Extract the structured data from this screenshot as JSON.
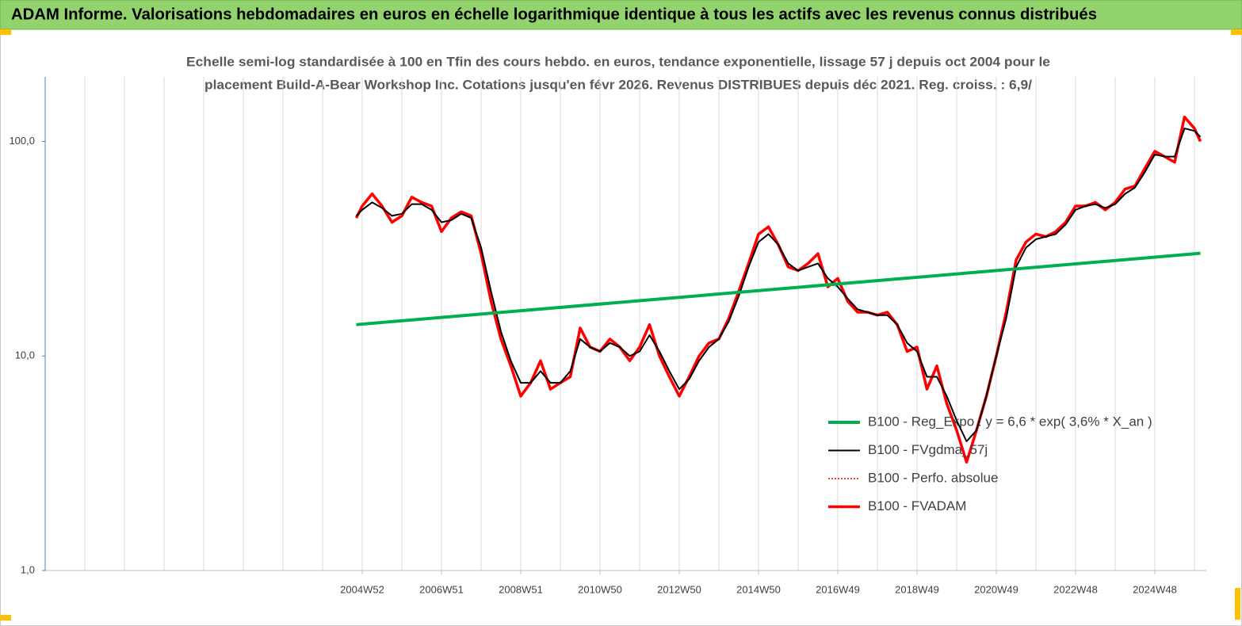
{
  "chart_data": {
    "type": "line",
    "title": "ADAM Informe. Valorisations hebdomadaires en euros en échelle logarithmique identique à tous les actifs avec les revenus connus distribués",
    "subtitle": [
      "Echelle semi-log standardisée à 100 en Tfin des cours hebdo. en euros, tendance exponentielle, lissage 57 j depuis oct 2004 pour le",
      "placement Build-A-Bear Workshop Inc.  Cotations jusqu'en févr 2026. Revenus DISTRIBUES depuis déc 2021. Reg. croiss. : 6,9/"
    ],
    "x": [
      2004.85,
      2005,
      2005.25,
      2005.5,
      2005.75,
      2006,
      2006.25,
      2006.5,
      2006.75,
      2007,
      2007.25,
      2007.5,
      2007.75,
      2008,
      2008.25,
      2008.5,
      2008.75,
      2009,
      2009.25,
      2009.5,
      2009.75,
      2010,
      2010.25,
      2010.5,
      2010.75,
      2011,
      2011.25,
      2011.5,
      2011.75,
      2012,
      2012.25,
      2012.5,
      2012.75,
      2013,
      2013.25,
      2013.5,
      2013.75,
      2014,
      2014.25,
      2014.5,
      2014.75,
      2015,
      2015.25,
      2015.5,
      2015.75,
      2016,
      2016.25,
      2016.5,
      2016.75,
      2017,
      2017.25,
      2017.5,
      2017.75,
      2018,
      2018.25,
      2018.5,
      2018.75,
      2019,
      2019.25,
      2019.5,
      2019.75,
      2020,
      2020.25,
      2020.5,
      2020.75,
      2021,
      2021.25,
      2021.5,
      2021.75,
      2022,
      2022.25,
      2022.5,
      2022.75,
      2023,
      2023.25,
      2023.5,
      2023.75,
      2024,
      2024.25,
      2024.5,
      2024.75,
      2025,
      2025.25,
      2025.5,
      2025.75,
      2026,
      2026.15
    ],
    "series": [
      {
        "name": "B100 - Reg_Expo : y = 6,6 * exp( 3,6% *  X_an )",
        "color": "#00b050",
        "linewidth": 4,
        "x": [
          2004.85,
          2026.15
        ],
        "values": [
          14.0,
          30.1
        ]
      },
      {
        "name": "B100 - FVgdma_57j",
        "color": "#000000",
        "linewidth": 2,
        "values": [
          45,
          48,
          52,
          49,
          45,
          46,
          51,
          51,
          48,
          42,
          43,
          46,
          44,
          32,
          20,
          13,
          9.5,
          7.5,
          7.5,
          8.5,
          7.5,
          7.5,
          8.5,
          12,
          11,
          10.5,
          11.5,
          11,
          10,
          10.5,
          12.5,
          10.5,
          8.5,
          7,
          7.8,
          9.5,
          11,
          12,
          14.5,
          19,
          26,
          34,
          37,
          33,
          27,
          25,
          26,
          27,
          23,
          21,
          18.5,
          16.5,
          16,
          15.5,
          15.5,
          14,
          11.5,
          10.5,
          8,
          8,
          6.5,
          5,
          4,
          4.5,
          6.5,
          10,
          15,
          26,
          32,
          35,
          36,
          37,
          41,
          48,
          50,
          51,
          49,
          51,
          57,
          61,
          72,
          87,
          85,
          85,
          115,
          112,
          105
        ]
      },
      {
        "name": "B100 - Perfo. absolue",
        "color": "#ff0000",
        "linewidth": 1.5,
        "line_style": "dotted",
        "values": [
          44,
          50,
          57,
          50,
          42,
          45,
          55,
          52,
          50,
          38,
          44,
          47,
          45,
          30,
          18,
          12,
          9,
          6.5,
          7.5,
          9.5,
          7,
          7.5,
          8,
          13.5,
          11,
          10.5,
          12,
          11,
          9.5,
          11,
          14,
          10,
          8,
          6.5,
          8,
          10,
          11.5,
          12,
          15,
          20,
          27,
          37,
          40,
          33,
          26,
          25,
          27,
          30,
          21,
          23,
          18,
          16,
          16,
          15.5,
          16,
          14,
          10.5,
          11,
          7,
          9,
          6,
          4.5,
          3.2,
          4.5,
          6.5,
          10,
          16,
          28,
          34,
          37,
          36,
          38,
          42,
          50,
          50,
          52,
          48,
          52,
          60,
          62,
          75,
          90,
          85,
          80,
          130,
          115,
          100
        ]
      },
      {
        "name": "B100 - FVADAM",
        "color": "#ff0000",
        "linewidth": 3.5,
        "values": [
          44,
          50,
          57,
          50,
          42,
          45,
          55,
          52,
          50,
          38,
          44,
          47,
          45,
          30,
          18,
          12,
          9,
          6.5,
          7.5,
          9.5,
          7,
          7.5,
          8,
          13.5,
          11,
          10.5,
          12,
          11,
          9.5,
          11,
          14,
          10,
          8,
          6.5,
          8,
          10,
          11.5,
          12,
          15,
          20,
          27,
          37,
          40,
          33,
          26,
          25,
          27,
          30,
          21,
          23,
          18,
          16,
          16,
          15.5,
          16,
          14,
          10.5,
          11,
          7,
          9,
          6,
          4.5,
          3.2,
          4.5,
          6.5,
          10,
          16,
          28,
          34,
          37,
          36,
          38,
          42,
          50,
          50,
          52,
          48,
          52,
          60,
          62,
          75,
          90,
          85,
          80,
          130,
          115,
          100
        ]
      }
    ],
    "xlim": [
      1997,
      2026.3
    ],
    "xticks": [
      {
        "value": 2005,
        "label": "2004W52"
      },
      {
        "value": 2007,
        "label": "2006W51"
      },
      {
        "value": 2009,
        "label": "2008W51"
      },
      {
        "value": 2011,
        "label": "2010W50"
      },
      {
        "value": 2013,
        "label": "2012W50"
      },
      {
        "value": 2015,
        "label": "2014W50"
      },
      {
        "value": 2017,
        "label": "2016W49"
      },
      {
        "value": 2019,
        "label": "2018W49"
      },
      {
        "value": 2021,
        "label": "2020W49"
      },
      {
        "value": 2023,
        "label": "2022W48"
      },
      {
        "value": 2025,
        "label": "2024W48"
      }
    ],
    "ylim": [
      1,
      200
    ],
    "yticks": [
      {
        "value": 1,
        "label": "1,0"
      },
      {
        "value": 10,
        "label": "10,0"
      },
      {
        "value": 100,
        "label": "100,0"
      }
    ],
    "log_y": true,
    "grid": true,
    "legend_position": "lower right"
  }
}
